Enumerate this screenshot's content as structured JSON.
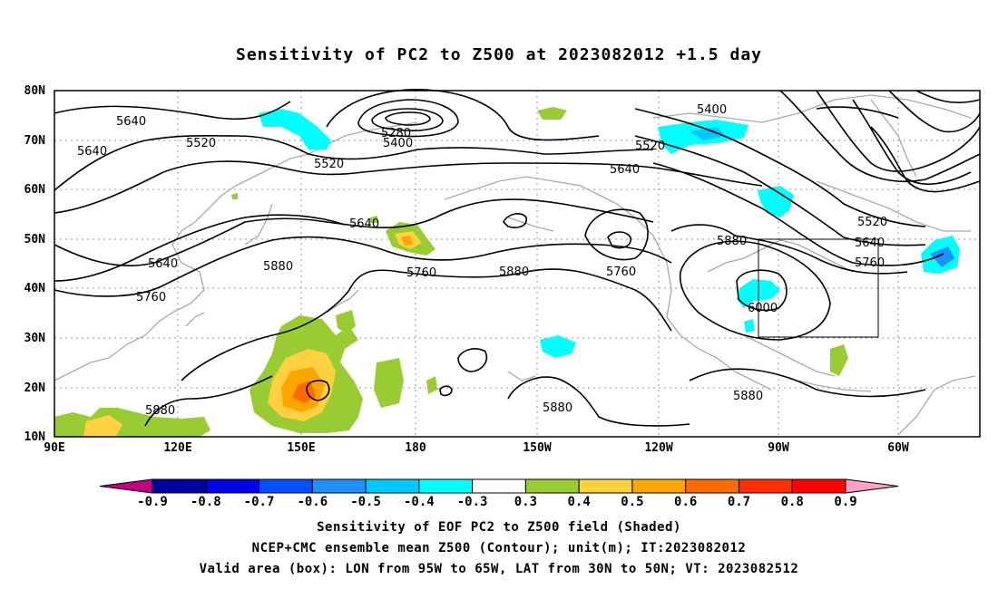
{
  "title": "Sensitivity of PC2 to Z500 at 2023082012 +1.5 day",
  "lat_labels": [
    "80N",
    "70N",
    "60N",
    "50N",
    "40N",
    "30N",
    "20N",
    "10N"
  ],
  "lon_labels": [
    "90E",
    "120E",
    "150E",
    "180",
    "150W",
    "120W",
    "90W",
    "60W"
  ],
  "contour_labels": {
    "c1": "5640",
    "c2": "5640",
    "c3": "5520",
    "c4": "5520",
    "c5": "5400",
    "c6": "5280",
    "c7": "5400",
    "c8": "5520",
    "c9": "5640",
    "c10": "5520",
    "c11": "5640",
    "c12": "5760",
    "c13": "5640",
    "c14": "5640",
    "c15": "5880",
    "c16": "5760",
    "c17": "5760",
    "c18": "5880",
    "c19": "5760",
    "c20": "5880",
    "c21": "6000",
    "c22": "5880",
    "c23": "5880",
    "c24": "5880"
  },
  "colorbar": {
    "colors": [
      "#c00080",
      "#0000a0",
      "#0000e6",
      "#0050ff",
      "#1e90ff",
      "#00c8ff",
      "#00ffff",
      "#ffffff",
      "#99cc33",
      "#ffd040",
      "#ffa500",
      "#ff6a00",
      "#ff3000",
      "#ff0000",
      "#ffa0c8"
    ],
    "labels": [
      "-0.9",
      "-0.8",
      "-0.7",
      "-0.6",
      "-0.5",
      "-0.4",
      "-0.3",
      "0.3",
      "0.4",
      "0.5",
      "0.6",
      "0.7",
      "0.8",
      "0.9"
    ]
  },
  "footer": {
    "line1": "Sensitivity of EOF PC2 to Z500 field (Shaded)",
    "line2": "NCEP+CMC ensemble mean Z500 (Contour); unit(m); IT:2023082012",
    "line3": "Valid area (box): LON from 95W to 65W, LAT from 30N to 50N; VT: 2023082512"
  }
}
